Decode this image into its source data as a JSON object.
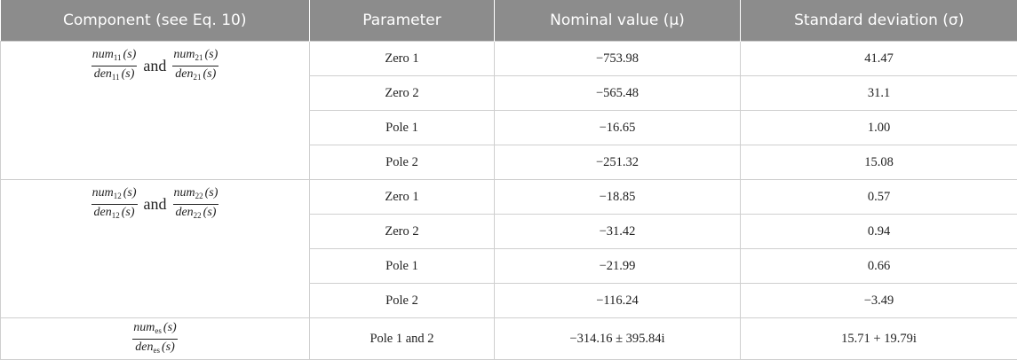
{
  "table": {
    "header": [
      "Component (see Eq. 10)",
      "Parameter",
      "Nominal value (μ)",
      "Standard deviation (σ)"
    ],
    "groups": [
      {
        "component": {
          "fractions": [
            {
              "num": {
                "name": "num",
                "sub": "11",
                "arg": "(s)"
              },
              "den": {
                "name": "den",
                "sub": "11",
                "arg": "(s)"
              }
            },
            {
              "num": {
                "name": "num",
                "sub": "21",
                "arg": "(s)"
              },
              "den": {
                "name": "den",
                "sub": "21",
                "arg": "(s)"
              }
            }
          ],
          "joiner": "and"
        },
        "rows": [
          [
            "Zero 1",
            "−753.98",
            "41.47"
          ],
          [
            "Zero 2",
            "−565.48",
            "31.1"
          ],
          [
            "Pole 1",
            "−16.65",
            "1.00"
          ],
          [
            "Pole 2",
            "−251.32",
            "15.08"
          ]
        ]
      },
      {
        "component": {
          "fractions": [
            {
              "num": {
                "name": "num",
                "sub": "12",
                "arg": "(s)"
              },
              "den": {
                "name": "den",
                "sub": "12",
                "arg": "(s)"
              }
            },
            {
              "num": {
                "name": "num",
                "sub": "22",
                "arg": "(s)"
              },
              "den": {
                "name": "den",
                "sub": "22",
                "arg": "(s)"
              }
            }
          ],
          "joiner": "and"
        },
        "rows": [
          [
            "Zero 1",
            "−18.85",
            "0.57"
          ],
          [
            "Zero 2",
            "−31.42",
            "0.94"
          ],
          [
            "Pole 1",
            "−21.99",
            "0.66"
          ],
          [
            "Pole 2",
            "−116.24",
            "−3.49"
          ]
        ]
      },
      {
        "component": {
          "fractions": [
            {
              "num": {
                "name": "num",
                "sub": "es",
                "arg": "(s)"
              },
              "den": {
                "name": "den",
                "sub": "es",
                "arg": "(s)"
              }
            }
          ]
        },
        "rows": [
          [
            "Pole 1 and 2",
            "−314.16 ± 395.84i",
            "15.71 + 19.79i"
          ]
        ]
      }
    ]
  }
}
